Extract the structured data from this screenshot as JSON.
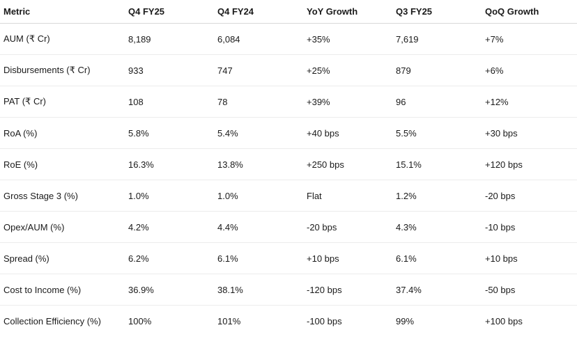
{
  "table": {
    "header": [
      "Metric",
      "Q4 FY25",
      "Q4 FY24",
      "YoY Growth",
      "Q3 FY25",
      "QoQ Growth"
    ],
    "rows": [
      [
        "AUM (₹ Cr)",
        "8,189",
        "6,084",
        "+35%",
        "7,619",
        "+7%"
      ],
      [
        "Disbursements (₹ Cr)",
        "933",
        "747",
        "+25%",
        "879",
        "+6%"
      ],
      [
        "PAT (₹ Cr)",
        "108",
        "78",
        "+39%",
        "96",
        "+12%"
      ],
      [
        "RoA (%)",
        "5.8%",
        "5.4%",
        "+40 bps",
        "5.5%",
        "+30 bps"
      ],
      [
        "RoE (%)",
        "16.3%",
        "13.8%",
        "+250 bps",
        "15.1%",
        "+120 bps"
      ],
      [
        "Gross Stage 3 (%)",
        "1.0%",
        "1.0%",
        "Flat",
        "1.2%",
        "-20 bps"
      ],
      [
        "Opex/AUM (%)",
        "4.2%",
        "4.4%",
        "-20 bps",
        "4.3%",
        "-10 bps"
      ],
      [
        "Spread (%)",
        "6.2%",
        "6.1%",
        "+10 bps",
        "6.1%",
        "+10 bps"
      ],
      [
        "Cost to Income (%)",
        "36.9%",
        "38.1%",
        "-120 bps",
        "37.4%",
        "-50 bps"
      ],
      [
        "Collection Efficiency (%)",
        "100%",
        "101%",
        "-100 bps",
        "99%",
        "+100 bps"
      ]
    ]
  }
}
